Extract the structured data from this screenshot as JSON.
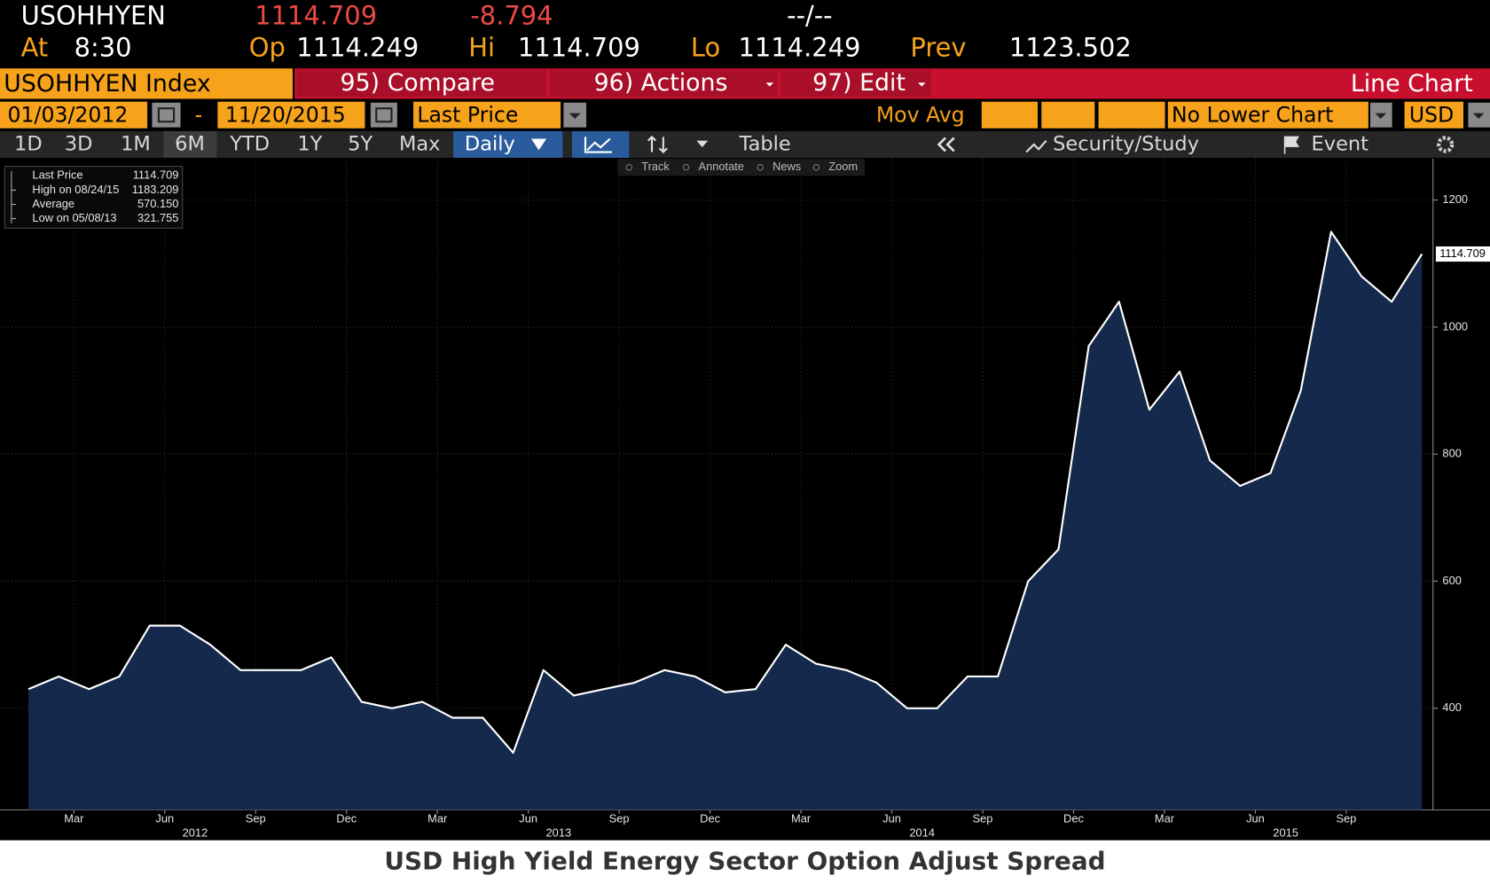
{
  "header": {
    "ticker": "USOHHYEN",
    "last": "1114.709",
    "change": "-8.794",
    "time_range": "--/--",
    "at_label": "At",
    "at_time": "8:30",
    "open_label": "Op",
    "open": "1114.249",
    "high_label": "Hi",
    "high": "1114.709",
    "low_label": "Lo",
    "low": "1114.249",
    "prev_label": "Prev",
    "prev": "1123.502"
  },
  "toolbar": {
    "security": "USOHHYEN Index",
    "buttons": [
      "95) Compare",
      "96) Actions",
      "97) Edit"
    ],
    "chart_type": "Line Chart",
    "start_date": "01/03/2012",
    "date_separator": "-",
    "end_date": "11/20/2015",
    "field": "Last Price",
    "study": "Mov Avg",
    "lower_chart": "No Lower Chart",
    "currency": "USD",
    "periods": [
      "1D",
      "3D",
      "1M",
      "6M",
      "YTD",
      "1Y",
      "5Y",
      "Max"
    ],
    "frequency": "Daily",
    "table": "Table",
    "security_study": "Security/Study",
    "event": "Event",
    "tools": [
      "Track",
      "Annotate",
      "News",
      "Zoom"
    ]
  },
  "chart_data": {
    "type": "line",
    "x": [
      "2012-01",
      "2012-02",
      "2012-03",
      "2012-04",
      "2012-05",
      "2012-06",
      "2012-07",
      "2012-08",
      "2012-09",
      "2012-10",
      "2012-11",
      "2012-12",
      "2013-01",
      "2013-02",
      "2013-03",
      "2013-04",
      "2013-05",
      "2013-06",
      "2013-07",
      "2013-08",
      "2013-09",
      "2013-10",
      "2013-11",
      "2013-12",
      "2014-01",
      "2014-02",
      "2014-03",
      "2014-04",
      "2014-05",
      "2014-06",
      "2014-07",
      "2014-08",
      "2014-09",
      "2014-10",
      "2014-11",
      "2014-12",
      "2015-01",
      "2015-02",
      "2015-03",
      "2015-04",
      "2015-05",
      "2015-06",
      "2015-07",
      "2015-08",
      "2015-09",
      "2015-10",
      "2015-11"
    ],
    "series": [
      {
        "name": "Last Price",
        "color": "#ffffff",
        "values": [
          430,
          450,
          430,
          450,
          530,
          530,
          500,
          460,
          460,
          460,
          480,
          410,
          400,
          410,
          385,
          385,
          330,
          460,
          420,
          430,
          440,
          460,
          450,
          425,
          430,
          500,
          470,
          460,
          440,
          400,
          400,
          450,
          450,
          600,
          650,
          970,
          1040,
          870,
          930,
          790,
          750,
          770,
          900,
          1150,
          1080,
          1040,
          1115
        ]
      }
    ],
    "fill_color": "#14294b",
    "ylim": [
      240,
      1265
    ],
    "yticks": [
      400,
      600,
      800,
      1000,
      1200
    ],
    "grid": true,
    "xticks": [
      {
        "value": "2012-03",
        "label": "Mar"
      },
      {
        "value": "2012-06",
        "label": "Jun"
      },
      {
        "value": "2012-09",
        "label": "Sep"
      },
      {
        "value": "2012-12",
        "label": "Dec"
      },
      {
        "value": "2013-03",
        "label": "Mar"
      },
      {
        "value": "2013-06",
        "label": "Jun"
      },
      {
        "value": "2013-09",
        "label": "Sep"
      },
      {
        "value": "2013-12",
        "label": "Dec"
      },
      {
        "value": "2014-03",
        "label": "Mar"
      },
      {
        "value": "2014-06",
        "label": "Jun"
      },
      {
        "value": "2014-09",
        "label": "Sep"
      },
      {
        "value": "2014-12",
        "label": "Dec"
      },
      {
        "value": "2015-03",
        "label": "Mar"
      },
      {
        "value": "2015-06",
        "label": "Jun"
      },
      {
        "value": "2015-09",
        "label": "Sep"
      }
    ],
    "year_labels": [
      {
        "value": "2012-07",
        "label": "2012"
      },
      {
        "value": "2013-07",
        "label": "2013"
      },
      {
        "value": "2014-07",
        "label": "2014"
      },
      {
        "value": "2015-07",
        "label": "2015"
      }
    ],
    "last_value_label": "1114.709",
    "legend": [
      {
        "label": "High on 08/24/15",
        "value": "1183.209"
      },
      {
        "label": "Average",
        "value": "570.150"
      },
      {
        "label": "Low on 05/08/13",
        "value": "321.755"
      }
    ]
  },
  "caption": "USD High Yield Energy Sector Option Adjust Spread"
}
